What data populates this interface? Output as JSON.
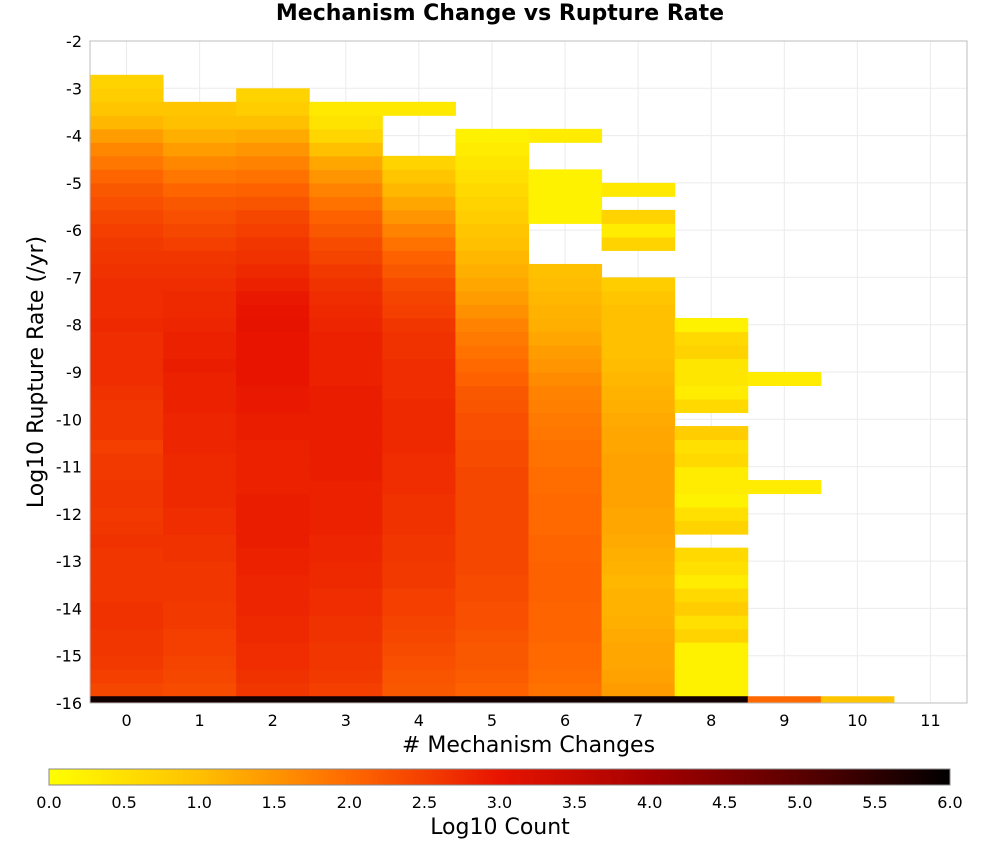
{
  "chart_data": {
    "type": "heatmap",
    "title": "Mechanism Change vs Rupture Rate",
    "xlabel": "# Mechanism Changes",
    "ylabel": "Log10 Rupture Rate (/yr)",
    "colorbar_label": "Log10 Count",
    "x_ticks": [
      "0",
      "1",
      "2",
      "3",
      "4",
      "5",
      "6",
      "7",
      "8",
      "9",
      "10",
      "11"
    ],
    "y_ticks": [
      "-2",
      "-3",
      "-4",
      "-5",
      "-6",
      "-7",
      "-8",
      "-9",
      "-10",
      "-11",
      "-12",
      "-13",
      "-14",
      "-15",
      "-16"
    ],
    "colorbar_ticks": [
      "0.0",
      "0.5",
      "1.0",
      "1.5",
      "2.0",
      "2.5",
      "3.0",
      "3.5",
      "4.0",
      "4.5",
      "5.0",
      "5.5",
      "6.0"
    ],
    "xlim": [
      -0.5,
      11.5
    ],
    "ylim": [
      -16.0,
      -2.0
    ],
    "zlim": [
      0.0,
      6.0
    ],
    "grid": true,
    "cell_height": 0.2857,
    "bottom_row": {
      "y_range": [
        -16.0,
        -15.857
      ],
      "values": [
        5.8,
        5.8,
        5.8,
        5.8,
        5.8,
        5.8,
        5.8,
        5.8,
        5.8,
        2.0,
        0.9,
        null
      ]
    },
    "columns": [
      {
        "x": 0,
        "y_start": -15.857,
        "y_end": -2.714,
        "values": [
          2.4,
          2.5,
          2.55,
          2.6,
          2.6,
          2.65,
          2.65,
          2.6,
          2.6,
          2.6,
          2.6,
          2.65,
          2.6,
          2.55,
          2.6,
          2.6,
          2.55,
          2.55,
          2.5,
          2.6,
          2.6,
          2.6,
          2.65,
          2.7,
          2.7,
          2.7,
          2.7,
          2.75,
          2.7,
          2.7,
          2.7,
          2.65,
          2.6,
          2.55,
          2.5,
          2.4,
          2.3,
          2.2,
          2.05,
          1.85,
          1.65,
          1.4,
          1.1,
          0.9,
          0.8,
          0.7
        ]
      },
      {
        "x": 1,
        "y_start": -15.857,
        "y_end": -3.286,
        "values": [
          2.35,
          2.4,
          2.45,
          2.5,
          2.5,
          2.55,
          2.55,
          2.6,
          2.6,
          2.6,
          2.65,
          2.65,
          2.7,
          2.7,
          2.75,
          2.75,
          2.75,
          2.75,
          2.8,
          2.8,
          2.8,
          2.85,
          2.85,
          2.85,
          2.9,
          2.85,
          2.85,
          2.8,
          2.75,
          2.75,
          2.7,
          2.65,
          2.6,
          2.5,
          2.4,
          2.3,
          2.2,
          2.05,
          1.85,
          1.65,
          1.4,
          1.2,
          1.0,
          0.9
        ]
      },
      {
        "x": 2,
        "y_start": -15.857,
        "y_end": -3.0,
        "values": [
          2.6,
          2.65,
          2.7,
          2.7,
          2.75,
          2.75,
          2.8,
          2.8,
          2.8,
          2.85,
          2.85,
          2.9,
          2.9,
          2.9,
          2.9,
          2.85,
          2.85,
          2.85,
          2.85,
          2.9,
          2.9,
          2.95,
          2.95,
          3.0,
          3.0,
          3.0,
          3.0,
          3.05,
          3.0,
          2.95,
          2.85,
          2.75,
          2.65,
          2.6,
          2.5,
          2.4,
          2.25,
          2.1,
          1.9,
          1.7,
          1.5,
          1.25,
          1.0,
          0.8,
          0.7
        ]
      },
      {
        "x": 3,
        "y_start": -15.857,
        "y_end": -3.286,
        "values": [
          2.5,
          2.55,
          2.6,
          2.6,
          2.65,
          2.65,
          2.7,
          2.7,
          2.75,
          2.75,
          2.8,
          2.8,
          2.85,
          2.85,
          2.85,
          2.85,
          2.9,
          2.9,
          2.9,
          2.9,
          2.9,
          2.9,
          2.9,
          2.85,
          2.85,
          2.85,
          2.85,
          2.8,
          2.75,
          2.7,
          2.65,
          2.55,
          2.45,
          2.35,
          2.2,
          2.1,
          1.9,
          1.7,
          1.5,
          1.3,
          1.0,
          0.65,
          0.45,
          0.35
        ]
      },
      {
        "x": 4,
        "y_start": -15.857,
        "y_end": -3.286,
        "values": [
          2.2,
          2.25,
          2.3,
          2.35,
          2.4,
          2.45,
          2.5,
          2.5,
          2.55,
          2.55,
          2.6,
          2.6,
          2.65,
          2.65,
          2.65,
          2.7,
          2.7,
          2.7,
          2.75,
          2.75,
          2.75,
          2.75,
          2.7,
          2.7,
          2.7,
          2.65,
          2.65,
          2.6,
          2.5,
          2.45,
          2.35,
          2.2,
          2.1,
          1.9,
          1.7,
          1.5,
          1.3,
          1.1,
          0.9,
          0.7,
          null,
          null,
          null,
          0.35
        ]
      },
      {
        "x": 5,
        "y_start": -15.857,
        "y_end": -3.857,
        "values": [
          2.1,
          2.15,
          2.2,
          2.2,
          2.25,
          2.3,
          2.3,
          2.35,
          2.35,
          2.4,
          2.4,
          2.4,
          2.4,
          2.4,
          2.4,
          2.4,
          2.4,
          2.35,
          2.35,
          2.3,
          2.3,
          2.25,
          2.2,
          2.1,
          2.0,
          1.9,
          1.8,
          1.7,
          1.55,
          1.4,
          1.3,
          1.2,
          1.1,
          1.0,
          0.9,
          0.8,
          0.7,
          0.6,
          0.5,
          0.4,
          0.3,
          0.2
        ]
      },
      {
        "x": 6,
        "y_start": -15.857,
        "y_end": -4.143,
        "values": [
          1.9,
          1.95,
          2.0,
          2.0,
          2.05,
          2.05,
          2.05,
          2.1,
          2.1,
          2.1,
          2.05,
          2.05,
          2.0,
          2.0,
          2.0,
          1.95,
          1.95,
          1.9,
          1.9,
          1.85,
          1.8,
          1.75,
          1.7,
          1.6,
          1.5,
          1.4,
          1.3,
          1.2,
          1.15,
          1.1,
          1.05,
          1.0,
          null,
          null,
          null,
          0.2,
          0.2,
          0.2,
          0.2,
          null,
          null,
          0.3
        ]
      },
      {
        "x": 7,
        "y_start": -15.857,
        "y_end": -5.286,
        "values": [
          1.4,
          1.35,
          1.3,
          1.3,
          1.25,
          1.2,
          1.15,
          1.15,
          1.1,
          1.15,
          1.2,
          1.25,
          1.3,
          1.3,
          1.35,
          1.35,
          1.35,
          1.35,
          1.3,
          1.3,
          1.25,
          1.2,
          1.15,
          1.1,
          1.05,
          1.0,
          1.0,
          1.0,
          1.0,
          0.9,
          0.8,
          null,
          null,
          0.7,
          0.3,
          0.7,
          null,
          0.35
        ]
      },
      {
        "x": 8,
        "y_start": -15.857,
        "y_end": -7.857,
        "values": [
          0.2,
          0.2,
          0.2,
          0.2,
          0.7,
          0.5,
          0.8,
          0.6,
          0.3,
          0.5,
          0.6,
          null,
          0.7,
          0.5,
          0.2,
          0.3,
          0.3,
          0.6,
          0.5,
          0.8,
          null,
          0.6,
          0.3,
          0.4,
          0.4,
          0.7,
          0.6,
          0.2
        ]
      },
      {
        "x": 9,
        "y_start": -11.571,
        "y_end": -9.0,
        "values": [
          0.3,
          null,
          null,
          null,
          null,
          null,
          null,
          null,
          0.3
        ]
      },
      {
        "x": 10,
        "y_start": -15.857,
        "y_end": -15.857,
        "values": []
      }
    ]
  }
}
